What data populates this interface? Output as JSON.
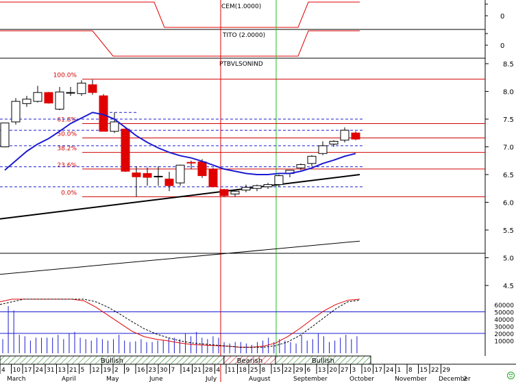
{
  "panels": {
    "cem": {
      "title": "CEM(1.0000)",
      "tick": "0"
    },
    "tito": {
      "title": "TITO (2.0000)",
      "tick": "0"
    },
    "main": {
      "title": "PTBVLSONIND"
    }
  },
  "colors": {
    "up": "#ffffff",
    "down": "#e00000",
    "ma": "#1a1ad0",
    "fib": "#d00000",
    "dashed": "#1a1ad0",
    "trend": "#000000",
    "signal_red": "#e00000",
    "signal_green": "#22bb22"
  },
  "chart_data": {
    "type": "candlestick",
    "title": "PTBVLSONIND",
    "price_axis": {
      "ticks": [
        "8.5",
        "8.0",
        "7.5",
        "7.0",
        "6.5",
        "6.0",
        "5.5",
        "5.0",
        "4.5"
      ],
      "range": [
        4.2,
        8.5
      ]
    },
    "volume_axis": {
      "ticks": [
        "60000",
        "50000",
        "40000",
        "30000",
        "20000",
        "10000"
      ]
    },
    "fib_levels": [
      {
        "label": "100.0%",
        "value": 8.22
      },
      {
        "label": "61.8%",
        "value": 7.42
      },
      {
        "label": "50.0%",
        "value": 7.16
      },
      {
        "label": "38.2%",
        "value": 6.9
      },
      {
        "label": "23.6%",
        "value": 6.6
      },
      {
        "label": "0.0%",
        "value": 6.1
      }
    ],
    "dashed_levels": [
      7.62,
      7.5,
      7.3,
      7.02,
      6.64,
      6.28
    ],
    "candles": [
      {
        "o": 7.0,
        "h": 7.42,
        "l": 6.99,
        "c": 7.43
      },
      {
        "o": 7.45,
        "h": 7.88,
        "l": 7.4,
        "c": 7.82
      },
      {
        "o": 7.78,
        "h": 7.92,
        "l": 7.72,
        "c": 7.86
      },
      {
        "o": 7.82,
        "h": 8.1,
        "l": 7.8,
        "c": 7.98
      },
      {
        "o": 7.98,
        "h": 7.99,
        "l": 7.78,
        "c": 7.79
      },
      {
        "o": 7.68,
        "h": 8.08,
        "l": 7.66,
        "c": 7.99
      },
      {
        "o": 7.98,
        "h": 8.08,
        "l": 7.92,
        "c": 7.98
      },
      {
        "o": 7.96,
        "h": 8.2,
        "l": 7.92,
        "c": 8.15
      },
      {
        "o": 8.12,
        "h": 8.21,
        "l": 7.94,
        "c": 7.98
      },
      {
        "o": 7.92,
        "h": 7.95,
        "l": 7.3,
        "c": 7.28
      },
      {
        "o": 7.28,
        "h": 7.62,
        "l": 7.25,
        "c": 7.45
      },
      {
        "o": 7.32,
        "h": 7.33,
        "l": 6.55,
        "c": 6.56
      },
      {
        "o": 6.53,
        "h": 6.65,
        "l": 6.1,
        "c": 6.46
      },
      {
        "o": 6.52,
        "h": 6.63,
        "l": 6.3,
        "c": 6.45
      },
      {
        "o": 6.46,
        "h": 6.65,
        "l": 6.3,
        "c": 6.47
      },
      {
        "o": 6.42,
        "h": 6.55,
        "l": 6.2,
        "c": 6.3
      },
      {
        "o": 6.35,
        "h": 6.68,
        "l": 6.3,
        "c": 6.67
      },
      {
        "o": 6.72,
        "h": 6.75,
        "l": 6.6,
        "c": 6.71
      },
      {
        "o": 6.73,
        "h": 6.78,
        "l": 6.44,
        "c": 6.48
      },
      {
        "o": 6.6,
        "h": 6.62,
        "l": 6.27,
        "c": 6.28
      },
      {
        "o": 6.23,
        "h": 6.24,
        "l": 6.1,
        "c": 6.12
      },
      {
        "o": 6.15,
        "h": 6.22,
        "l": 6.1,
        "c": 6.2
      },
      {
        "o": 6.22,
        "h": 6.32,
        "l": 6.18,
        "c": 6.27
      },
      {
        "o": 6.25,
        "h": 6.32,
        "l": 6.2,
        "c": 6.3
      },
      {
        "o": 6.28,
        "h": 6.35,
        "l": 6.24,
        "c": 6.32
      },
      {
        "o": 6.32,
        "h": 6.5,
        "l": 6.28,
        "c": 6.48
      },
      {
        "o": 6.52,
        "h": 6.58,
        "l": 6.45,
        "c": 6.58
      },
      {
        "o": 6.62,
        "h": 6.7,
        "l": 6.58,
        "c": 6.68
      },
      {
        "o": 6.7,
        "h": 6.85,
        "l": 6.65,
        "c": 6.83
      },
      {
        "o": 6.88,
        "h": 7.1,
        "l": 6.85,
        "c": 7.02
      },
      {
        "o": 7.05,
        "h": 7.12,
        "l": 7.0,
        "c": 7.1
      },
      {
        "o": 7.12,
        "h": 7.35,
        "l": 7.08,
        "c": 7.3
      },
      {
        "o": 7.25,
        "h": 7.28,
        "l": 7.12,
        "c": 7.14
      }
    ],
    "ma": [
      6.58,
      6.75,
      6.92,
      7.05,
      7.15,
      7.28,
      7.42,
      7.52,
      7.62,
      7.58,
      7.5,
      7.35,
      7.2,
      7.08,
      6.98,
      6.9,
      6.84,
      6.8,
      6.74,
      6.67,
      6.6,
      6.56,
      6.52,
      6.5,
      6.5,
      6.52,
      6.52,
      6.56,
      6.62,
      6.7,
      6.76,
      6.83,
      6.88
    ],
    "trend_line": {
      "from": 5.7,
      "to": 6.5
    },
    "long_line": {
      "from": 4.7,
      "to": 5.3
    },
    "volume": [
      12000,
      58000,
      52000,
      18000,
      16000,
      10000,
      14000,
      14000,
      14000,
      14000,
      18000,
      12000,
      20000,
      22000,
      14000,
      12000,
      10000,
      14000,
      12000,
      10000,
      12000,
      18000,
      10000,
      8000,
      9000,
      12000,
      8000,
      8000,
      10000,
      10000,
      14000,
      14000,
      12000,
      20000,
      16000,
      22000,
      14000,
      12000,
      16000,
      14000,
      8000,
      6000,
      8000,
      8000,
      6000,
      4000,
      8000,
      10000,
      14000,
      8000,
      12000,
      10000,
      8000,
      6000,
      18000,
      10000,
      12000,
      20000,
      16000,
      8000,
      10000,
      14000,
      18000,
      12000,
      16000
    ],
    "bands": [
      {
        "label": "Bullish",
        "start": 0.0,
        "end": 0.435
      },
      {
        "label": "Bearish",
        "start": 0.435,
        "end": 0.535
      },
      {
        "label": "Bullish",
        "start": 0.535,
        "end": 0.72
      }
    ],
    "date_ticks": [
      "4",
      "10",
      "17",
      "24",
      "31",
      "13",
      "21",
      "5",
      "12",
      "19",
      "2",
      "9",
      "16",
      "23",
      "30",
      "7",
      "14",
      "21",
      "28",
      "4",
      "11",
      "18",
      "25",
      "8",
      "15",
      "22",
      "29",
      "6",
      "13",
      "20",
      "27",
      "3",
      "10",
      "17",
      "24",
      "1",
      "8",
      "15",
      "22",
      "29"
    ],
    "months": [
      "March",
      "April",
      "May",
      "June",
      "July",
      "August",
      "September",
      "October",
      "November",
      "December",
      "2"
    ],
    "cem_values": [
      1,
      1,
      1,
      1,
      1,
      1,
      1,
      1,
      1,
      1,
      1,
      1,
      1,
      1,
      1,
      1,
      0,
      0,
      0,
      0,
      0,
      0,
      0,
      0,
      0,
      0,
      0,
      0,
      0,
      0,
      1,
      1,
      1,
      1,
      1,
      1
    ],
    "tito_values": [
      1,
      1,
      1,
      1,
      1,
      1,
      1,
      1,
      1,
      1,
      0.5,
      0,
      0,
      0,
      0,
      0,
      0,
      0,
      0,
      0,
      0,
      0,
      0,
      0,
      0,
      0,
      0,
      0,
      0,
      0,
      1,
      1,
      1,
      1,
      1,
      1
    ]
  }
}
